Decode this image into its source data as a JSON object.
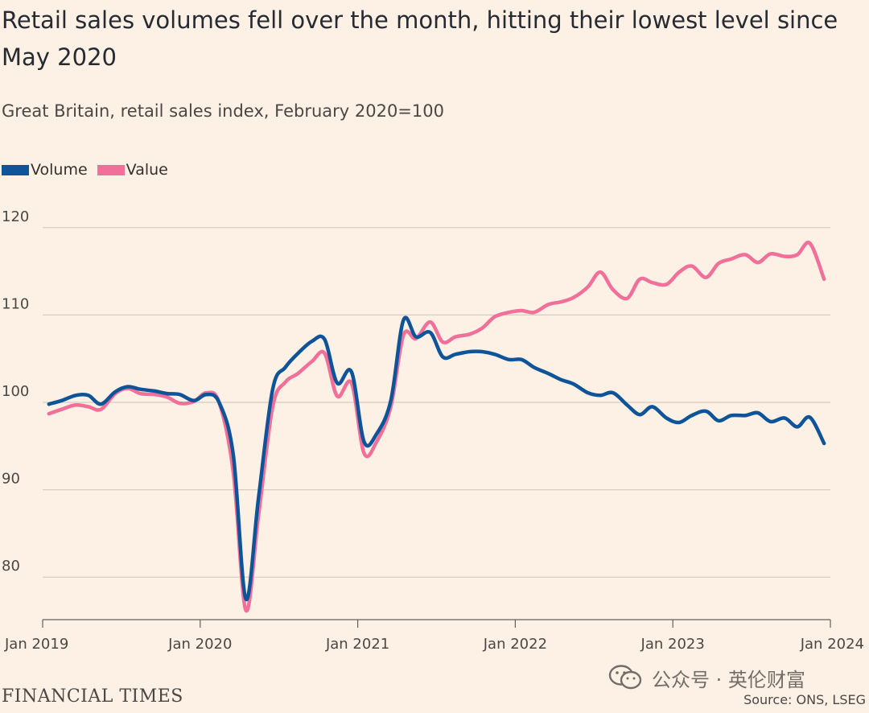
{
  "header": {
    "title": "Retail sales volumes fell over the month, hitting their lowest level since May 2020",
    "subtitle": "Great Britain, retail sales index, February 2020=100"
  },
  "footer": {
    "brand": "FINANCIAL TIMES",
    "source": "Source: ONS, LSEG",
    "watermark": "公众号 · 英伦财富"
  },
  "colors": {
    "background": "#fdf1e5",
    "volume": "#0f5499",
    "value": "#f0709a",
    "grid": "#d6cbc0",
    "axis": "#66605c"
  },
  "chart_data": {
    "type": "line",
    "title": "Retail sales volumes fell over the month, hitting their lowest level since May 2020",
    "subtitle": "Great Britain, retail sales index, February 2020=100",
    "xlabel": "",
    "ylabel": "",
    "x_range": [
      2019.0,
      2024.0
    ],
    "ylim": [
      75,
      122
    ],
    "y_ticks": [
      80,
      90,
      100,
      110,
      120
    ],
    "x_ticks": [
      {
        "value": 2019,
        "label": "Jan 2019"
      },
      {
        "value": 2020,
        "label": "Jan 2020"
      },
      {
        "value": 2021,
        "label": "Jan 2021"
      },
      {
        "value": 2022,
        "label": "Jan 2022"
      },
      {
        "value": 2023,
        "label": "Jan 2023"
      },
      {
        "value": 2024,
        "label": "Jan 2024"
      }
    ],
    "grid": true,
    "legend_position": "top-left",
    "series": [
      {
        "name": "Volume",
        "color": "#0f5499",
        "x": [
          2019.04,
          2019.12,
          2019.21,
          2019.29,
          2019.37,
          2019.46,
          2019.54,
          2019.62,
          2019.71,
          2019.79,
          2019.87,
          2019.96,
          2020.04,
          2020.12,
          2020.21,
          2020.29,
          2020.37,
          2020.46,
          2020.54,
          2020.62,
          2020.71,
          2020.79,
          2020.87,
          2020.96,
          2021.04,
          2021.12,
          2021.21,
          2021.29,
          2021.37,
          2021.46,
          2021.54,
          2021.62,
          2021.71,
          2021.79,
          2021.87,
          2021.96,
          2022.04,
          2022.12,
          2022.21,
          2022.29,
          2022.37,
          2022.46,
          2022.54,
          2022.62,
          2022.71,
          2022.79,
          2022.87,
          2022.96,
          2023.04,
          2023.12,
          2023.21,
          2023.29,
          2023.37,
          2023.46,
          2023.54,
          2023.62,
          2023.71,
          2023.79,
          2023.87,
          2023.96
        ],
        "values": [
          99.8,
          100.2,
          100.8,
          100.8,
          99.8,
          101.2,
          101.8,
          101.5,
          101.3,
          101.0,
          100.9,
          100.2,
          100.9,
          100.0,
          94.0,
          77.5,
          89.0,
          101.5,
          104.0,
          105.6,
          107.0,
          107.2,
          102.2,
          103.5,
          95.5,
          96.4,
          100.2,
          109.4,
          107.5,
          108.0,
          105.2,
          105.5,
          105.8,
          105.8,
          105.5,
          104.9,
          104.9,
          104.0,
          103.3,
          102.6,
          102.1,
          101.1,
          100.8,
          101.1,
          99.7,
          98.6,
          99.5,
          98.2,
          97.7,
          98.5,
          99.0,
          97.9,
          98.5,
          98.5,
          98.8,
          97.8,
          98.2,
          97.2,
          98.3,
          95.3
        ]
      },
      {
        "name": "Value",
        "color": "#f0709a",
        "x": [
          2019.04,
          2019.12,
          2019.21,
          2019.29,
          2019.37,
          2019.46,
          2019.54,
          2019.62,
          2019.71,
          2019.79,
          2019.87,
          2019.96,
          2020.04,
          2020.12,
          2020.21,
          2020.29,
          2020.37,
          2020.46,
          2020.54,
          2020.62,
          2020.71,
          2020.79,
          2020.87,
          2020.96,
          2021.04,
          2021.12,
          2021.21,
          2021.29,
          2021.37,
          2021.46,
          2021.54,
          2021.62,
          2021.71,
          2021.79,
          2021.87,
          2021.96,
          2022.04,
          2022.12,
          2022.21,
          2022.29,
          2022.37,
          2022.46,
          2022.54,
          2022.62,
          2022.71,
          2022.79,
          2022.87,
          2022.96,
          2023.04,
          2023.12,
          2023.21,
          2023.29,
          2023.37,
          2023.46,
          2023.54,
          2023.62,
          2023.71,
          2023.79,
          2023.87,
          2023.96
        ],
        "values": [
          98.7,
          99.2,
          99.7,
          99.5,
          99.2,
          101.0,
          101.6,
          101.0,
          100.9,
          100.6,
          99.9,
          100.1,
          101.1,
          100.0,
          92.0,
          76.2,
          87.0,
          99.5,
          102.3,
          103.3,
          104.7,
          105.6,
          100.7,
          102.2,
          94.2,
          95.5,
          99.5,
          107.7,
          107.3,
          109.2,
          106.9,
          107.5,
          107.8,
          108.5,
          109.8,
          110.3,
          110.5,
          110.3,
          111.2,
          111.5,
          112.0,
          113.2,
          114.9,
          112.9,
          111.9,
          114.1,
          113.7,
          113.5,
          114.9,
          115.6,
          114.3,
          115.9,
          116.4,
          116.9,
          116.0,
          117.0,
          116.7,
          116.9,
          118.2,
          114.1
        ]
      }
    ]
  }
}
